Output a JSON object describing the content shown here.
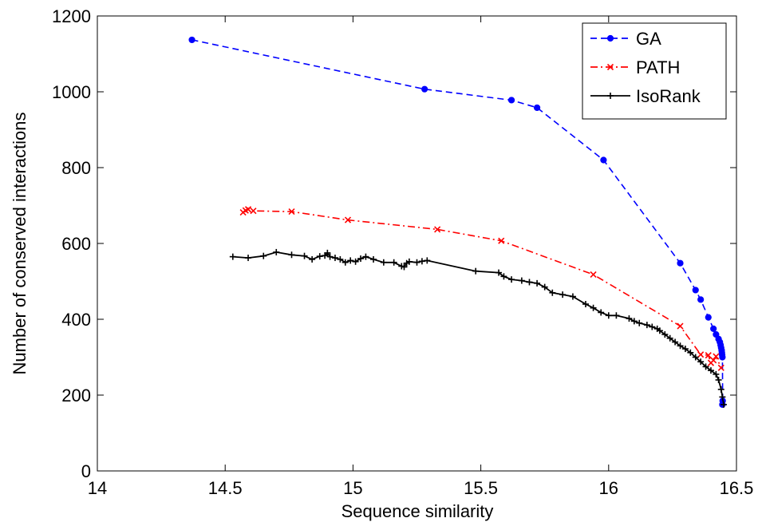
{
  "chart_data": {
    "type": "line",
    "xlabel": "Sequence similarity",
    "ylabel": "Number of conserved interactions",
    "xlim": [
      14,
      16.5
    ],
    "ylim": [
      0,
      1200
    ],
    "xticks": [
      14,
      14.5,
      15,
      15.5,
      16,
      16.5
    ],
    "xtick_labels": [
      "14",
      "14.5",
      "15",
      "15.5",
      "16",
      "16.5"
    ],
    "yticks": [
      0,
      200,
      400,
      600,
      800,
      1000,
      1200
    ],
    "ytick_labels": [
      "0",
      "200",
      "400",
      "600",
      "800",
      "1000",
      "1200"
    ],
    "grid": false,
    "legend_position": "top-right",
    "series": [
      {
        "name": "GA",
        "color": "#0000ff",
        "line_style": "dashed",
        "marker": "dot",
        "x": [
          14.37,
          15.28,
          15.62,
          15.72,
          15.98,
          16.28,
          16.34,
          16.36,
          16.39,
          16.41,
          16.42,
          16.43,
          16.435,
          16.438,
          16.44,
          16.442,
          16.443,
          16.444,
          16.445,
          16.446,
          16.445
        ],
        "y": [
          1137,
          1007,
          978,
          958,
          820,
          548,
          477,
          452,
          405,
          375,
          360,
          348,
          340,
          332,
          325,
          318,
          312,
          306,
          300,
          185,
          175
        ]
      },
      {
        "name": "PATH",
        "color": "#ff0000",
        "line_style": "dashdot",
        "marker": "x",
        "x": [
          14.57,
          14.58,
          14.59,
          14.61,
          14.76,
          14.98,
          15.33,
          15.58,
          15.94,
          16.28,
          16.36,
          16.39,
          16.4,
          16.41,
          16.42,
          16.44
        ],
        "y": [
          682,
          687,
          690,
          686,
          684,
          662,
          637,
          607,
          518,
          382,
          307,
          305,
          285,
          292,
          302,
          272
        ]
      },
      {
        "name": "IsoRank",
        "color": "#000000",
        "line_style": "solid",
        "marker": "plus",
        "x": [
          14.53,
          14.59,
          14.65,
          14.7,
          14.76,
          14.81,
          14.84,
          14.87,
          14.89,
          14.9,
          14.91,
          14.93,
          14.95,
          14.97,
          14.99,
          15.01,
          15.03,
          15.05,
          15.08,
          15.12,
          15.16,
          15.19,
          15.2,
          15.21,
          15.22,
          15.25,
          15.27,
          15.29,
          15.48,
          15.57,
          15.59,
          15.62,
          15.66,
          15.69,
          15.72,
          15.75,
          15.78,
          15.82,
          15.86,
          15.91,
          15.94,
          15.97,
          16.0,
          16.03,
          16.08,
          16.1,
          16.12,
          16.15,
          16.17,
          16.19,
          16.2,
          16.22,
          16.24,
          16.26,
          16.28,
          16.3,
          16.32,
          16.34,
          16.36,
          16.38,
          16.4,
          16.42,
          16.43,
          16.44,
          16.445,
          16.45
        ],
        "y": [
          565,
          562,
          567,
          577,
          570,
          567,
          558,
          566,
          568,
          575,
          565,
          562,
          558,
          550,
          555,
          552,
          560,
          565,
          558,
          550,
          550,
          540,
          538,
          548,
          552,
          550,
          553,
          555,
          527,
          523,
          513,
          505,
          502,
          498,
          495,
          485,
          470,
          465,
          460,
          440,
          430,
          418,
          410,
          410,
          402,
          395,
          390,
          385,
          380,
          375,
          370,
          360,
          350,
          340,
          330,
          322,
          312,
          300,
          288,
          275,
          265,
          255,
          240,
          215,
          195,
          175
        ]
      }
    ]
  }
}
